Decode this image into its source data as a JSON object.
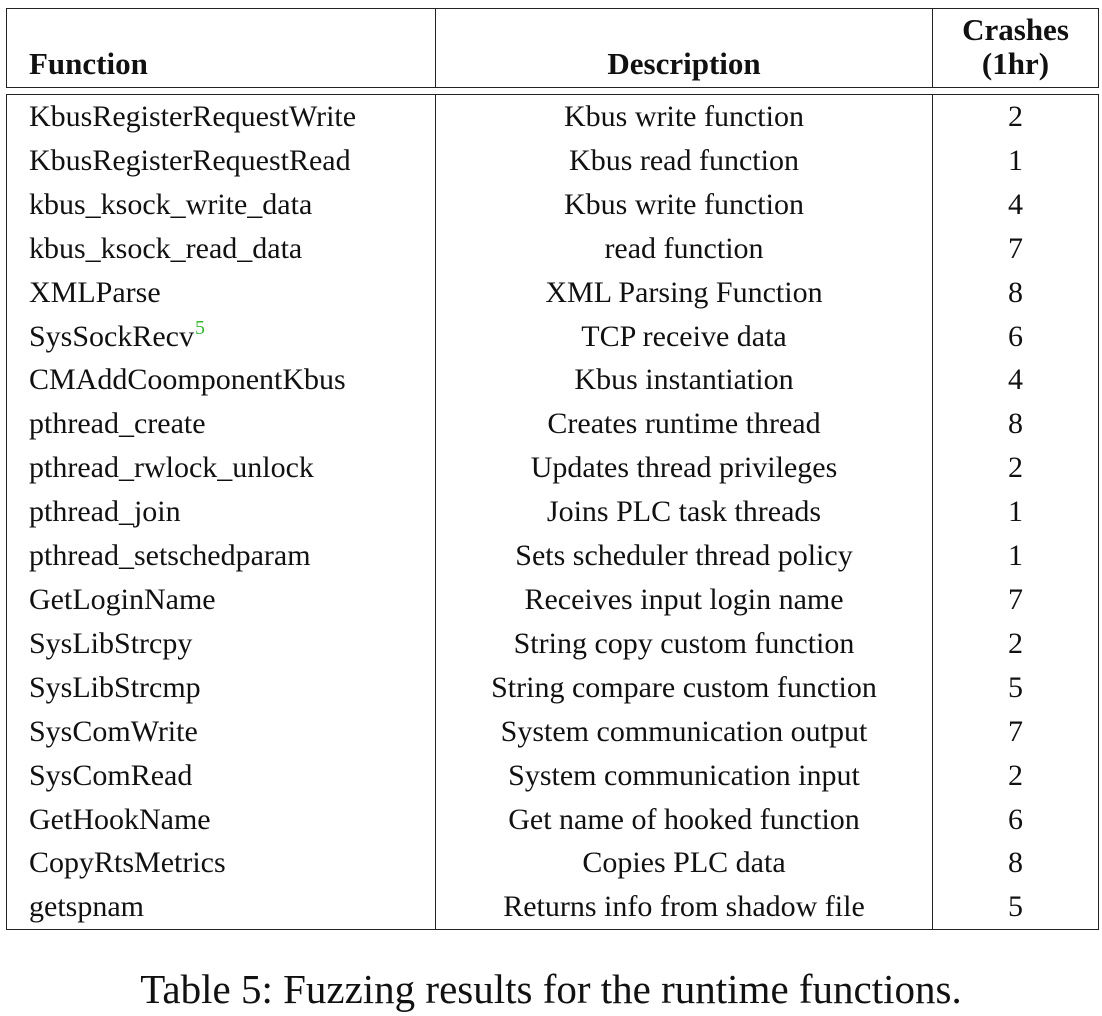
{
  "table": {
    "headers": {
      "function": "Function",
      "description": "Description",
      "crashes_line1": "Crashes",
      "crashes_line2": "(1hr)"
    },
    "rows": [
      {
        "function": "KbusRegisterRequestWrite",
        "description": "Kbus write function",
        "crashes": "2"
      },
      {
        "function": "KbusRegisterRequestRead",
        "description": "Kbus read function",
        "crashes": "1"
      },
      {
        "function": "kbus_ksock_write_data",
        "description": "Kbus write function",
        "crashes": "4"
      },
      {
        "function": "kbus_ksock_read_data",
        "description": "read function",
        "crashes": "7"
      },
      {
        "function": "XMLParse",
        "description": "XML Parsing Function",
        "crashes": "8"
      },
      {
        "function": "SysSockRecv",
        "footnote": "5",
        "description": "TCP receive data",
        "crashes": "6"
      },
      {
        "function": "CMAddCoomponentKbus",
        "description": "Kbus instantiation",
        "crashes": "4"
      },
      {
        "function": "pthread_create",
        "description": "Creates runtime thread",
        "crashes": "8"
      },
      {
        "function": "pthread_rwlock_unlock",
        "description": "Updates thread privileges",
        "crashes": "2"
      },
      {
        "function": "pthread_join",
        "description": "Joins PLC task threads",
        "crashes": "1"
      },
      {
        "function": "pthread_setschedparam",
        "description": "Sets scheduler thread policy",
        "crashes": "1"
      },
      {
        "function": "GetLoginName",
        "description": "Receives input login name",
        "crashes": "7"
      },
      {
        "function": "SysLibStrcpy",
        "description": "String copy custom function",
        "crashes": "2"
      },
      {
        "function": "SysLibStrcmp",
        "description": "String compare custom function",
        "crashes": "5"
      },
      {
        "function": "SysComWrite",
        "description": "System communication output",
        "crashes": "7"
      },
      {
        "function": "SysComRead",
        "description": "System communication input",
        "crashes": "2"
      },
      {
        "function": "GetHookName",
        "description": "Get name of hooked function",
        "crashes": "6"
      },
      {
        "function": "CopyRtsMetrics",
        "description": "Copies PLC data",
        "crashes": "8"
      },
      {
        "function": "getspnam",
        "description": "Returns info from shadow file",
        "crashes": "5"
      }
    ]
  },
  "caption": "Table 5: Fuzzing results for the runtime functions.",
  "colors": {
    "footnote_marker": "#2eb82e",
    "text": "#111111"
  }
}
